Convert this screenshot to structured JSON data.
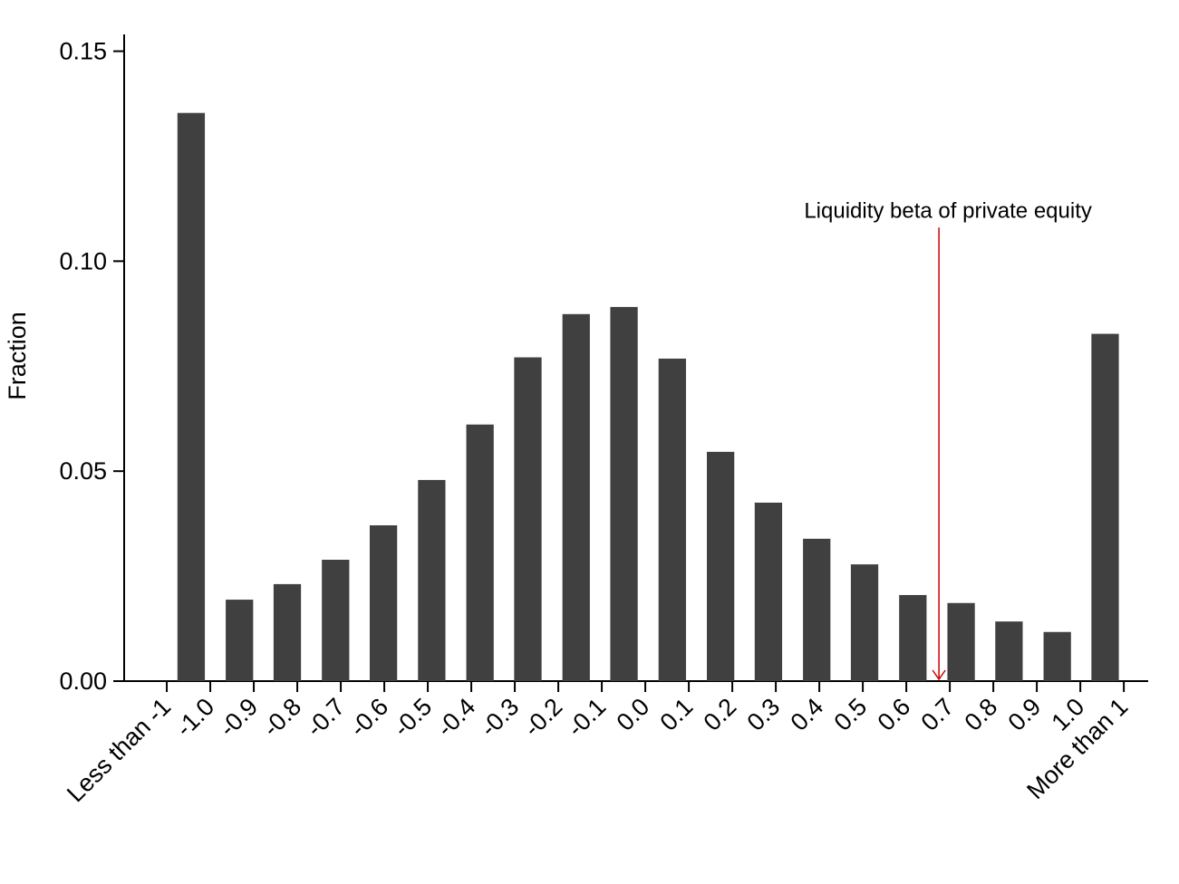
{
  "chart_data": {
    "type": "histogram",
    "y_label": "Fraction",
    "x": [
      -1.044,
      -0.933,
      -0.823,
      -0.712,
      -0.602,
      -0.491,
      -0.38,
      -0.27,
      -0.159,
      -0.049,
      0.062,
      0.173,
      0.283,
      0.394,
      0.504,
      0.615,
      0.726,
      0.836,
      0.947,
      1.057
    ],
    "values": [
      0.1353,
      0.0194,
      0.0231,
      0.0289,
      0.0371,
      0.0479,
      0.0611,
      0.0771,
      0.0874,
      0.0891,
      0.0768,
      0.0546,
      0.0425,
      0.0339,
      0.0278,
      0.0205,
      0.0186,
      0.0142,
      0.0117,
      0.0827
    ],
    "color": "#404040",
    "xlim": [
      -1.198,
      1.156
    ],
    "xticks": [
      {
        "value": -1.1,
        "label": "Less than -1"
      },
      {
        "value": -1,
        "label": "-1.0"
      },
      -0.9,
      -0.8,
      -0.7,
      -0.6,
      -0.5,
      -0.4,
      -0.3,
      -0.2,
      -0.1,
      {
        "value": 0,
        "label": "0.0"
      },
      0.1,
      0.2,
      0.3,
      0.4,
      0.5,
      0.6,
      0.7,
      0.8,
      0.9,
      {
        "value": 1,
        "label": "1.0"
      },
      {
        "value": 1.1,
        "label": "More than 1"
      }
    ],
    "ylim": [
      0,
      0.154
    ],
    "yticks": [
      {
        "value": 0,
        "label": "0.00"
      },
      0.05,
      {
        "value": 0.1,
        "label": "0.10"
      },
      0.15
    ],
    "annotation": {
      "text": "Liquidity beta of private equity",
      "x": 0.675,
      "y": 0.108,
      "color": "#cc0000"
    }
  }
}
